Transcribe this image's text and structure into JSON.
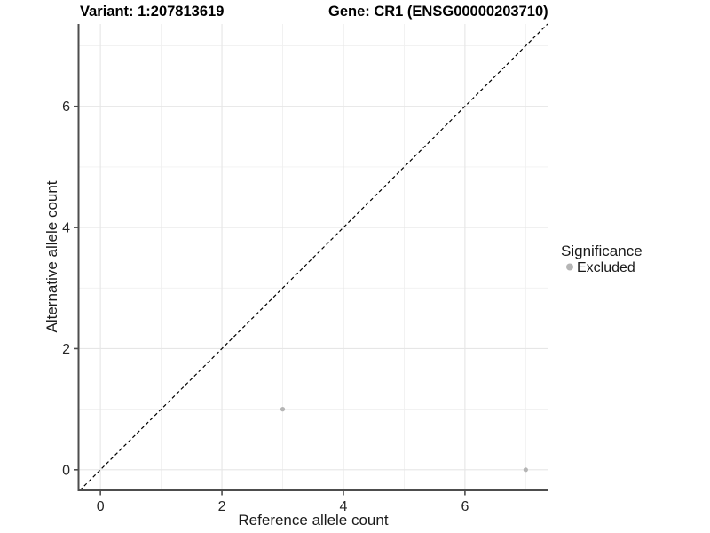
{
  "header": {
    "variant_title": "Variant: 1:207813619",
    "gene_title": "Gene: CR1 (ENSG00000203710)"
  },
  "chart_data": {
    "type": "scatter",
    "title_left": "Variant: 1:207813619",
    "title_right": "Gene: CR1 (ENSG00000203710)",
    "xlabel": "Reference allele count",
    "ylabel": "Alternative allele count",
    "xlim": [
      -0.36,
      7.36
    ],
    "ylim": [
      -0.34,
      7.36
    ],
    "x_major_ticks": [
      0,
      2,
      4,
      6
    ],
    "y_major_ticks": [
      0,
      2,
      4,
      6
    ],
    "x_minor_gridlines": [
      1,
      3,
      5,
      7
    ],
    "y_minor_gridlines": [
      1,
      3,
      5,
      7
    ],
    "grid": true,
    "identity_line": {
      "style": "dashed",
      "slope": 1,
      "intercept": 0,
      "color": "#000000"
    },
    "series": [
      {
        "name": "Excluded",
        "color": "#b5b5b5",
        "points": [
          {
            "x": 3,
            "y": 1
          },
          {
            "x": 7,
            "y": 0
          }
        ]
      }
    ],
    "legend": {
      "title": "Significance",
      "position": "right",
      "items": [
        {
          "label": "Excluded",
          "color": "#b5b5b5"
        }
      ]
    },
    "colors": {
      "axis_line": "#4d4d4d",
      "major_grid": "#e6e6e6",
      "minor_grid": "#f0f0f0",
      "background": "#ffffff"
    }
  }
}
